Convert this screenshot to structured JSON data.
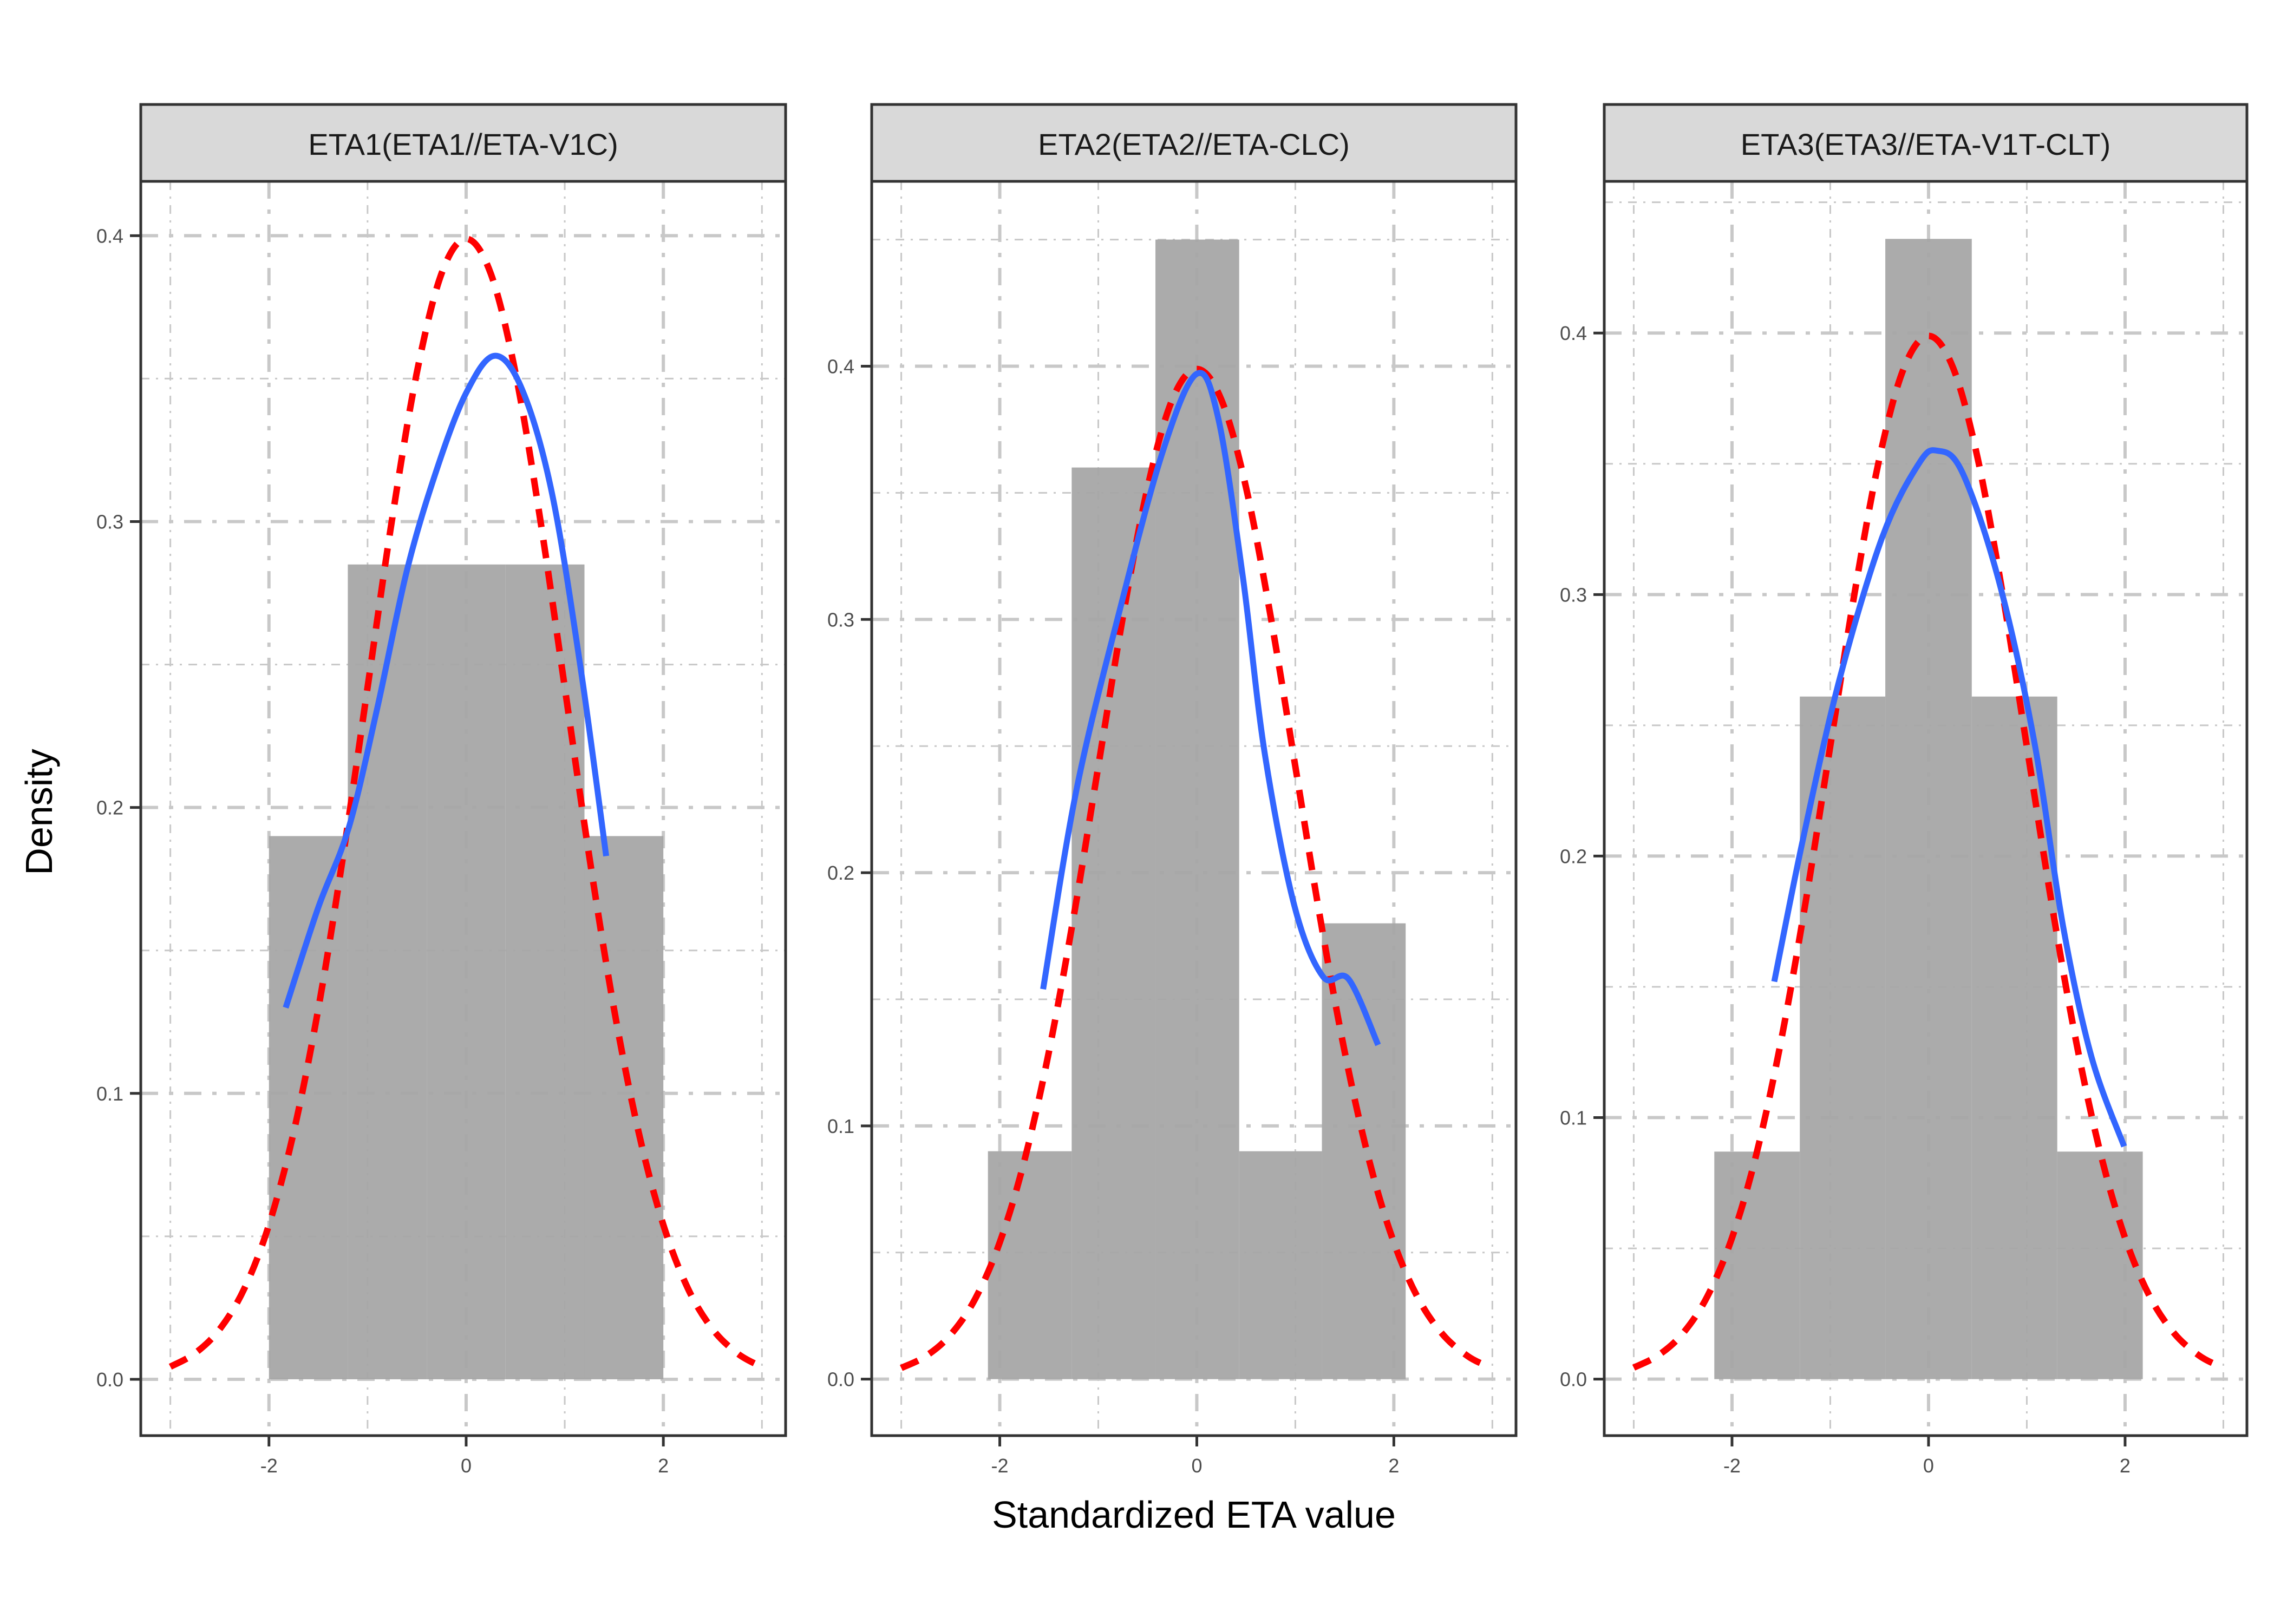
{
  "chart_data": {
    "type": "histogram-density-facets",
    "xlabel": "Standardized ETA value",
    "ylabel": "Density",
    "colors": {
      "bar": "#a6a6a6",
      "kernel_density": "#3366ff",
      "normal_reference": "#ff0000",
      "strip_bg": "#d9d9d9",
      "panel_border": "#333333",
      "grid": "#c8c8c8"
    },
    "x_ticks": [
      -2,
      0,
      2
    ],
    "x_tick_labels": [
      "-2",
      "0",
      "2"
    ],
    "reference_curve": {
      "name": "standard normal density",
      "x": [
        -3,
        -2.75,
        -2.5,
        -2.25,
        -2,
        -1.75,
        -1.5,
        -1.25,
        -1,
        -0.75,
        -0.5,
        -0.25,
        0,
        0.25,
        0.5,
        0.75,
        1,
        1.25,
        1.5,
        1.75,
        2,
        2.25,
        2.5,
        2.75,
        2.95
      ],
      "y": [
        0.0044,
        0.0091,
        0.0175,
        0.0317,
        0.054,
        0.0863,
        0.1295,
        0.1826,
        0.242,
        0.3011,
        0.3521,
        0.3867,
        0.3989,
        0.3867,
        0.3521,
        0.3011,
        0.242,
        0.1826,
        0.1295,
        0.0863,
        0.054,
        0.0317,
        0.0175,
        0.0091,
        0.0051
      ]
    },
    "panels": [
      {
        "strip": "ETA1(ETA1//ETA-V1C)",
        "xlim": [
          -3.3,
          3.24
        ],
        "ylim": [
          -0.0197,
          0.419
        ],
        "y_ticks": [
          0.0,
          0.1,
          0.2,
          0.3,
          0.4
        ],
        "y_tick_labels": [
          "0.0",
          "0.1",
          "0.2",
          "0.3",
          "0.4"
        ],
        "bins": {
          "edges": [
            -2.0,
            -1.2,
            -0.4,
            0.4,
            1.2,
            2.0
          ],
          "density": [
            0.19,
            0.285,
            0.285,
            0.285,
            0.19
          ]
        },
        "kde": {
          "x": [
            -1.83,
            -1.5,
            -1.19,
            -0.9,
            -0.6,
            -0.3,
            0.0,
            0.29,
            0.57,
            0.87,
            1.16,
            1.42
          ],
          "y": [
            0.13,
            0.165,
            0.193,
            0.235,
            0.283,
            0.318,
            0.345,
            0.358,
            0.346,
            0.31,
            0.249,
            0.183
          ]
        }
      },
      {
        "strip": "ETA2(ETA2//ETA-CLC)",
        "xlim": [
          -3.3,
          3.24
        ],
        "ylim": [
          -0.0223,
          0.473
        ],
        "y_ticks": [
          0.0,
          0.1,
          0.2,
          0.3,
          0.4
        ],
        "y_tick_labels": [
          "0.0",
          "0.1",
          "0.2",
          "0.3",
          "0.4"
        ],
        "bins": {
          "edges": [
            -2.12,
            -1.27,
            -0.42,
            0.43,
            1.27,
            2.12
          ],
          "density": [
            0.09,
            0.36,
            0.45,
            0.09,
            0.18
          ]
        },
        "kde": {
          "x": [
            -1.56,
            -1.22,
            -0.78,
            -0.34,
            0.0,
            0.22,
            0.47,
            0.69,
            0.99,
            1.28,
            1.54,
            1.84
          ],
          "y": [
            0.154,
            0.233,
            0.304,
            0.367,
            0.397,
            0.379,
            0.316,
            0.247,
            0.187,
            0.159,
            0.158,
            0.132
          ]
        }
      },
      {
        "strip": "ETA3(ETA3//ETA-V1T-CLT)",
        "xlim": [
          -3.3,
          3.24
        ],
        "ylim": [
          -0.0216,
          0.458
        ],
        "y_ticks": [
          0.0,
          0.1,
          0.2,
          0.3,
          0.4
        ],
        "y_tick_labels": [
          "0.0",
          "0.1",
          "0.2",
          "0.3",
          "0.4"
        ],
        "bins": {
          "edges": [
            -2.18,
            -1.31,
            -0.44,
            0.44,
            1.31,
            2.18
          ],
          "density": [
            0.087,
            0.261,
            0.436,
            0.261,
            0.087
          ]
        },
        "kde": {
          "x": [
            -1.57,
            -1.28,
            -0.91,
            -0.47,
            -0.1,
            0.09,
            0.34,
            0.71,
            1.07,
            1.37,
            1.66,
            1.99
          ],
          "y": [
            0.152,
            0.206,
            0.267,
            0.322,
            0.35,
            0.355,
            0.347,
            0.306,
            0.245,
            0.173,
            0.123,
            0.089
          ]
        }
      }
    ]
  }
}
